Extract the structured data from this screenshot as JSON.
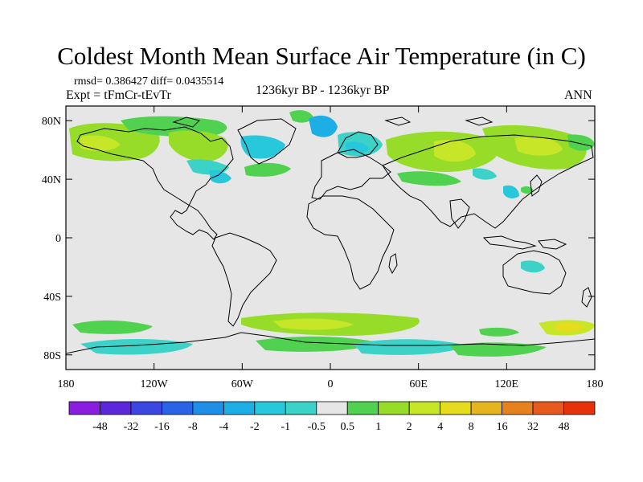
{
  "title": "Coldest Month Mean Surface Air Temperature (in C)",
  "stats": {
    "rmsd": "rmsd= 0.386427",
    "diff": "diff= 0.0435514"
  },
  "expt": "Expt = tFmCr-tEvTr",
  "period": "1236kyr BP - 1236kyr BP",
  "season": "ANN",
  "chart_data": {
    "type": "filled-contour-map",
    "title": "Coldest Month Mean Surface Air Temperature (in C)",
    "xaxis": {
      "ticks": [
        "180",
        "120W",
        "60W",
        "0",
        "60E",
        "120E",
        "180"
      ],
      "range": [
        -180,
        180
      ]
    },
    "yaxis": {
      "ticks": [
        "80N",
        "40N",
        "0",
        "40S",
        "80S"
      ],
      "range": [
        -90,
        90
      ]
    },
    "colorbar": {
      "labels": [
        "-48",
        "-32",
        "-16",
        "-8",
        "-4",
        "-2",
        "-1",
        "-0.5",
        "0.5",
        "1",
        "2",
        "4",
        "8",
        "16",
        "32",
        "48"
      ],
      "colors": [
        "#8a1ee0",
        "#5a28d8",
        "#3c46e0",
        "#2a64e6",
        "#1e8ee6",
        "#1eaee6",
        "#28c8dc",
        "#3cd2c8",
        "#e6e6e6",
        "#50d250",
        "#96dc28",
        "#c8e628",
        "#e6dc1e",
        "#e6b41e",
        "#e6821e",
        "#e65a1e",
        "#e6320a"
      ]
    }
  }
}
